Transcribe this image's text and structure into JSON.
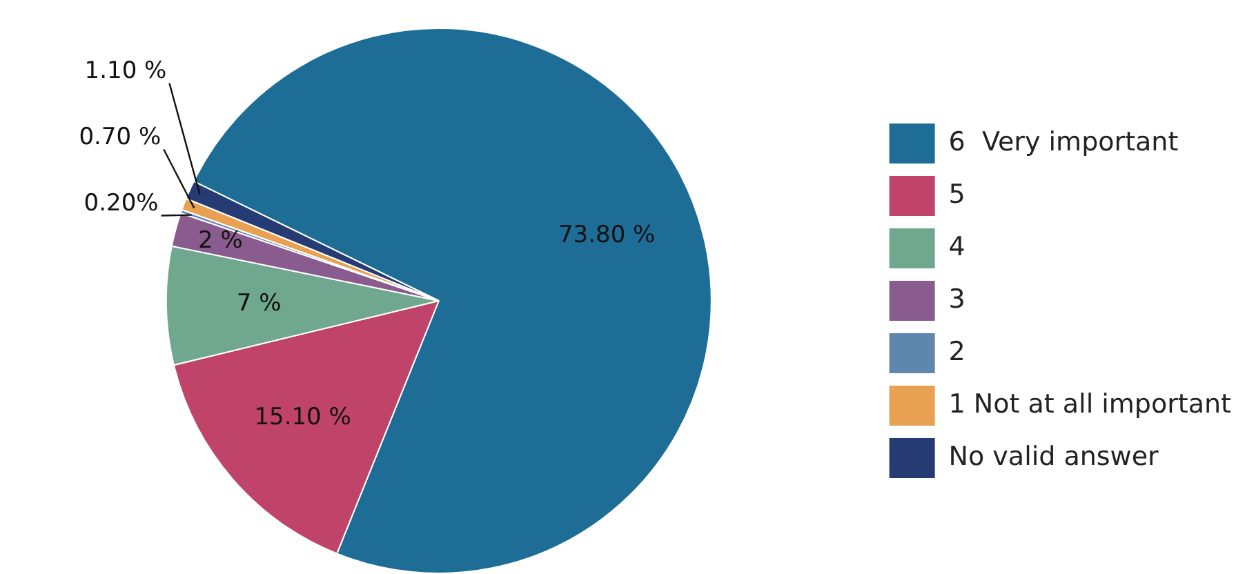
{
  "chart_data": {
    "type": "pie",
    "categories": [
      "6  Very important",
      "5",
      "4",
      "3",
      "2",
      "1 Not at all important",
      "No valid answer"
    ],
    "values": [
      73.8,
      15.1,
      7,
      2,
      0.2,
      0.7,
      1.1
    ],
    "colors": [
      "#1d6d96",
      "#c0436a",
      "#6fa78f",
      "#8a5b8e",
      "#5f86ad",
      "#e8a052",
      "#263a73"
    ],
    "value_labels": [
      "73.80 %",
      "15.10 %",
      "7 %",
      "2 %",
      "0.20%",
      "0.70 %",
      "1.10 %"
    ],
    "legend": "right"
  }
}
